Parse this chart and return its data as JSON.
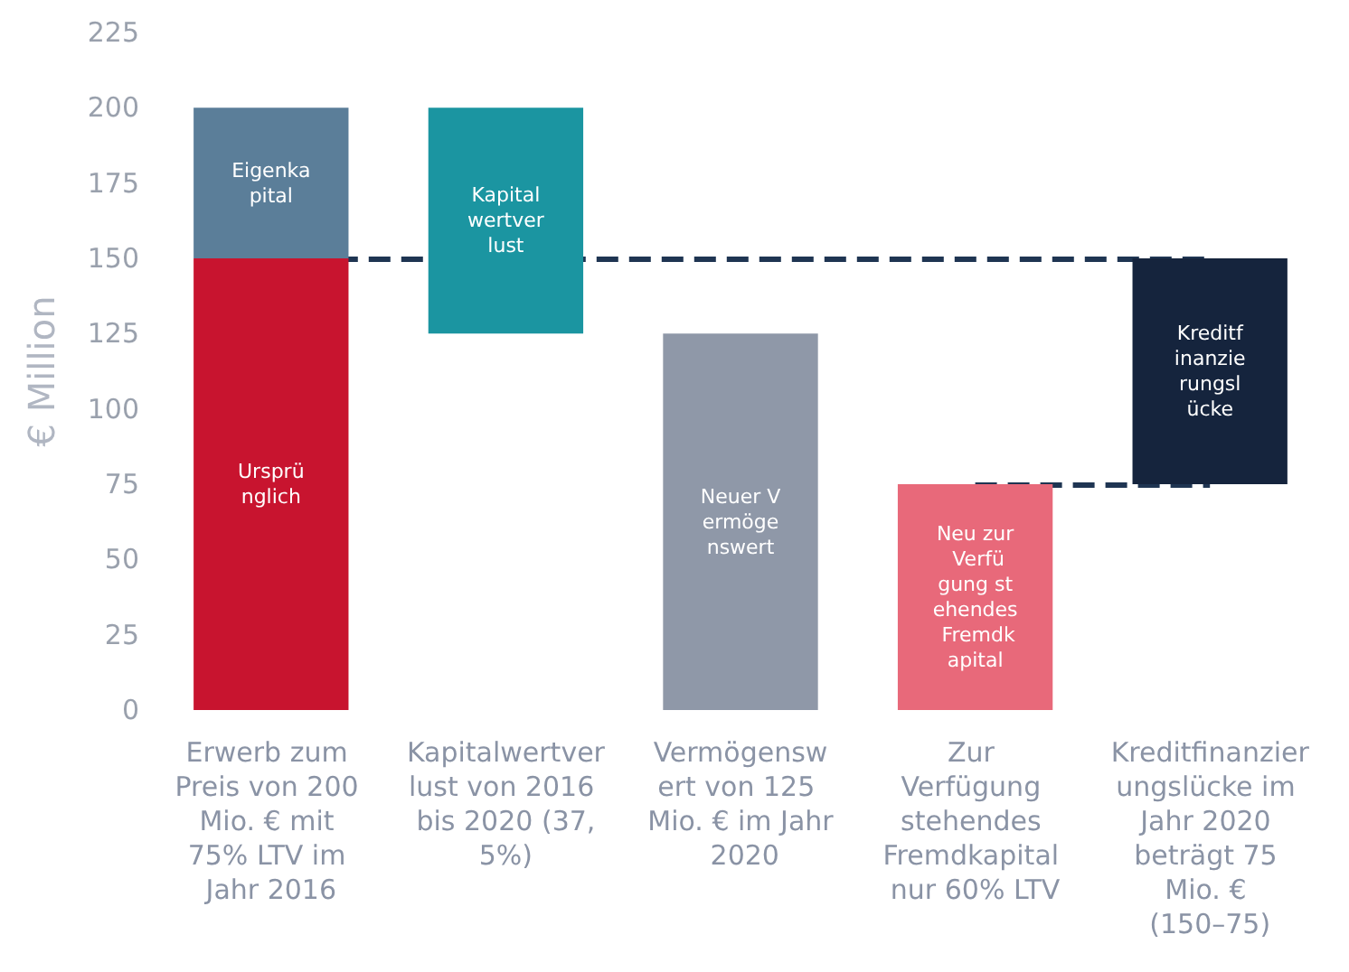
{
  "chart_data": {
    "type": "bar",
    "ylabel": "€ Million",
    "categories": [
      "Erwerb zum Preis von 200 Mio. € mit 75% LTV im Jahr 2016",
      "Kapitalwertverlust von 2016 bis 2020 (37,5%)",
      "Vermögenswert von 125 Mio. € im Jahr 2020",
      "Zur Verfügung stehendes Fremdkapital nur 60% LTV",
      "Kreditfinanzierungslücke im Jahr 2020 beträgt 75 Mio. € (150–75)"
    ],
    "series": [
      {
        "name": "Ursprünglich",
        "color": "#c8142f",
        "values": [
          150,
          null,
          null,
          null,
          null
        ]
      },
      {
        "name": "Eigenkapital",
        "color": "#5b7e99",
        "values": [
          50,
          null,
          null,
          null,
          null
        ],
        "base": [
          150,
          null,
          null,
          null,
          null
        ]
      },
      {
        "name": "Kapitalwertverlust",
        "color": "#1b95a1",
        "values": [
          null,
          75,
          null,
          null,
          null
        ],
        "base": [
          null,
          125,
          null,
          null,
          null
        ]
      },
      {
        "name": "Neuer Vermögenswert",
        "color": "#8f98a8",
        "values": [
          null,
          null,
          125,
          null,
          null
        ]
      },
      {
        "name": "Neu zur Verfügung stehendes Fremdkapital",
        "color": "#e8697a",
        "values": [
          null,
          null,
          null,
          75,
          null
        ]
      },
      {
        "name": "Kreditfinanzierungslücke",
        "color": "#15243d",
        "values": [
          null,
          null,
          null,
          null,
          75
        ],
        "base": [
          null,
          null,
          null,
          null,
          75
        ]
      }
    ],
    "ref_lines": [
      {
        "axis": "y",
        "value": 150,
        "color": "#1f3552",
        "line_style": "dashed"
      },
      {
        "axis": "y",
        "value": 75,
        "color": "#1f3552",
        "line_style": "dashed"
      }
    ],
    "ylim": [
      0,
      225
    ],
    "yticks": [
      0,
      25,
      50,
      75,
      100,
      125,
      150,
      175,
      200,
      225
    ],
    "grid": false,
    "legend": false
  }
}
